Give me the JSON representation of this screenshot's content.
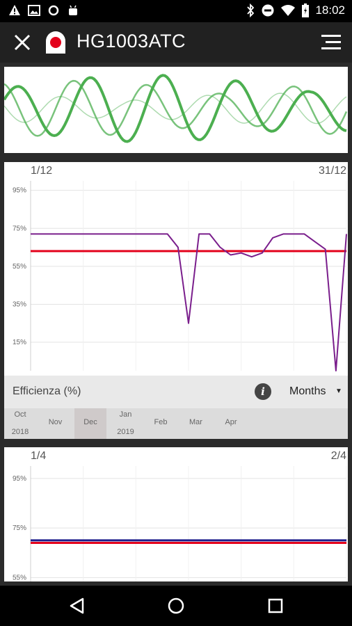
{
  "status_bar": {
    "time": "18:02",
    "left_icons": [
      "warning-icon",
      "image-icon",
      "circle-icon",
      "android-icon"
    ],
    "right_icons": [
      "bluetooth-icon",
      "do-not-disturb-icon",
      "wifi-icon",
      "battery-icon"
    ]
  },
  "app_bar": {
    "title": "HG1003ATC",
    "close_icon": "close-icon",
    "menu_icon": "menu-icon"
  },
  "chart1": {
    "range_start": "1/12",
    "range_end": "31/12",
    "metric_label": "Efficienza (%)",
    "period": "Months",
    "timeline": [
      {
        "month": "Oct",
        "year": "2018",
        "selected": false
      },
      {
        "month": "Nov",
        "year": "",
        "selected": false
      },
      {
        "month": "Dec",
        "year": "",
        "selected": true
      },
      {
        "month": "Jan",
        "year": "2019",
        "selected": false
      },
      {
        "month": "Feb",
        "year": "",
        "selected": false
      },
      {
        "month": "Mar",
        "year": "",
        "selected": false
      },
      {
        "month": "Apr",
        "year": "",
        "selected": false
      }
    ]
  },
  "chart2": {
    "range_start": "1/4",
    "range_end": "2/4"
  },
  "colors": {
    "accent_line": "#e3001b",
    "series_line": "#7a1e8c",
    "wave": "#4caf50",
    "series2_line": "#1c1c8c"
  },
  "chart_data": [
    {
      "type": "line",
      "ylabel": "",
      "yticks": [
        "95%",
        "75%",
        "55%",
        "35%",
        "15%"
      ],
      "ylim": [
        0,
        100
      ],
      "x_range": [
        1,
        31
      ],
      "series": [
        {
          "x": [
            1,
            5,
            10,
            14,
            15,
            16,
            17,
            18,
            19,
            20,
            21,
            22,
            23,
            24,
            25,
            26,
            27,
            28,
            29,
            30,
            31
          ],
          "values": [
            72,
            72,
            72,
            72,
            65,
            25,
            72,
            72,
            65,
            61,
            62,
            60,
            62,
            70,
            72,
            72,
            72,
            68,
            64,
            0,
            72
          ]
        }
      ],
      "reference_line": 63,
      "grid": true
    },
    {
      "type": "line",
      "yticks": [
        "95%",
        "75%",
        "55%"
      ],
      "ylim": [
        45,
        100
      ],
      "series": [
        {
          "x": [
            1,
            31
          ],
          "values": [
            70,
            70
          ]
        }
      ],
      "reference_line": 69,
      "grid": true
    }
  ]
}
